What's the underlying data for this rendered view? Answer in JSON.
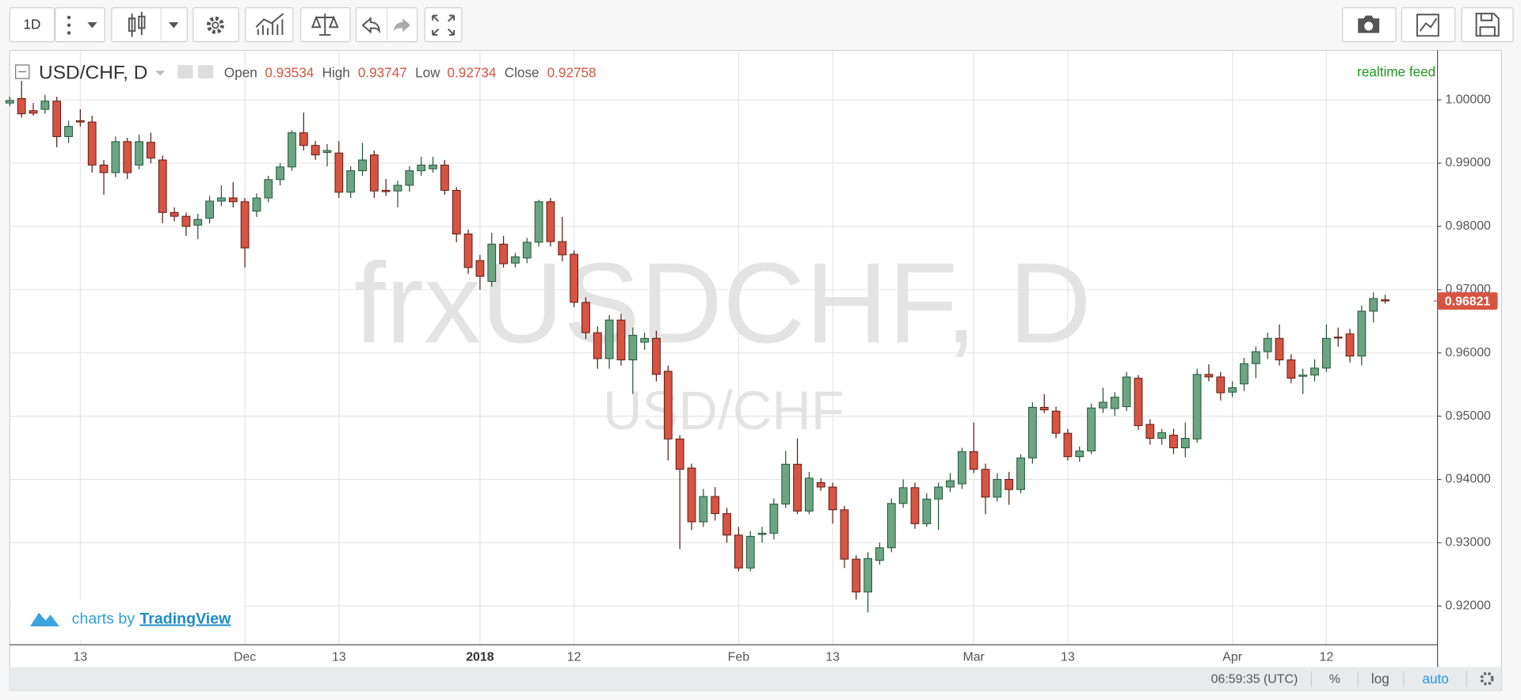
{
  "toolbar": {
    "interval": "1D"
  },
  "chart_data": {
    "type": "candlestick",
    "symbol": "USD/CHF, D",
    "legend": {
      "open_label": "Open",
      "open": 0.93534,
      "high_label": "High",
      "high": 0.93747,
      "low_label": "Low",
      "low": 0.92734,
      "close_label": "Close",
      "close": 0.92758
    },
    "status": "realtime feed",
    "watermark": "frxUSDCHF, D",
    "watermark_subtitle": "USD/CHF",
    "last_price": 0.96821,
    "up_color": "#6ba583",
    "down_color": "#d75442",
    "grid": true,
    "ylim": [
      0.91387,
      1.00782
    ],
    "yticks": [
      {
        "value": 0.92,
        "label": "0.92000"
      },
      {
        "value": 0.93,
        "label": "0.93000"
      },
      {
        "value": 0.94,
        "label": "0.94000"
      },
      {
        "value": 0.95,
        "label": "0.95000"
      },
      {
        "value": 0.96,
        "label": "0.96000"
      },
      {
        "value": 0.97,
        "label": "0.97000"
      },
      {
        "value": 0.98,
        "label": "0.98000"
      },
      {
        "value": 0.99,
        "label": "0.99000"
      },
      {
        "value": 1.0,
        "label": "1.00000"
      }
    ],
    "categories": [
      null,
      null,
      null,
      null,
      null,
      null,
      "13",
      null,
      null,
      null,
      null,
      null,
      null,
      null,
      null,
      null,
      null,
      null,
      null,
      null,
      "Dec",
      null,
      null,
      null,
      null,
      null,
      null,
      null,
      "13",
      null,
      null,
      null,
      null,
      null,
      null,
      null,
      null,
      null,
      null,
      null,
      "2018",
      null,
      null,
      null,
      null,
      null,
      null,
      null,
      "12",
      null,
      null,
      null,
      null,
      null,
      null,
      null,
      null,
      null,
      null,
      null,
      null,
      null,
      "Feb",
      null,
      null,
      null,
      null,
      null,
      null,
      null,
      "13",
      null,
      null,
      null,
      null,
      null,
      null,
      null,
      null,
      null,
      null,
      null,
      "Mar",
      null,
      null,
      null,
      null,
      null,
      null,
      null,
      "13",
      null,
      null,
      null,
      null,
      null,
      null,
      null,
      null,
      null,
      null,
      null,
      null,
      null,
      "Apr",
      null,
      null,
      null,
      null,
      null,
      null,
      null,
      "12",
      null,
      null,
      null,
      null,
      null
    ],
    "values": [
      [
        0.9995,
        1.0005,
        0.999,
        0.9999
      ],
      [
        1.0002,
        1.003,
        0.9972,
        0.9978
      ],
      [
        0.9983,
        0.9995,
        0.9975,
        0.9979
      ],
      [
        0.9985,
        1.0008,
        0.9978,
        0.9998
      ],
      [
        0.9998,
        1.0005,
        0.9925,
        0.9942
      ],
      [
        0.9942,
        0.9967,
        0.9932,
        0.9958
      ],
      [
        0.9967,
        0.9985,
        0.9958,
        0.9965
      ],
      [
        0.9965,
        0.9975,
        0.9885,
        0.9897
      ],
      [
        0.9897,
        0.9905,
        0.985,
        0.9885
      ],
      [
        0.9885,
        0.9942,
        0.9878,
        0.9934
      ],
      [
        0.9934,
        0.994,
        0.9875,
        0.9885
      ],
      [
        0.9897,
        0.9945,
        0.989,
        0.9934
      ],
      [
        0.9933,
        0.9948,
        0.99,
        0.9908
      ],
      [
        0.9905,
        0.9912,
        0.9805,
        0.9822
      ],
      [
        0.9822,
        0.983,
        0.9808,
        0.9816
      ],
      [
        0.9816,
        0.9822,
        0.9785,
        0.98
      ],
      [
        0.9802,
        0.982,
        0.978,
        0.9811
      ],
      [
        0.9813,
        0.9848,
        0.9805,
        0.984
      ],
      [
        0.984,
        0.9865,
        0.9832,
        0.9845
      ],
      [
        0.9845,
        0.987,
        0.983,
        0.9839
      ],
      [
        0.9839,
        0.9845,
        0.9735,
        0.9766
      ],
      [
        0.9824,
        0.9852,
        0.9815,
        0.9845
      ],
      [
        0.9845,
        0.988,
        0.9838,
        0.9874
      ],
      [
        0.9874,
        0.99,
        0.9865,
        0.9894
      ],
      [
        0.9894,
        0.9952,
        0.9888,
        0.9948
      ],
      [
        0.9948,
        0.998,
        0.992,
        0.9928
      ],
      [
        0.9928,
        0.9935,
        0.9905,
        0.9913
      ],
      [
        0.9917,
        0.993,
        0.9895,
        0.992
      ],
      [
        0.9916,
        0.9935,
        0.9845,
        0.9854
      ],
      [
        0.9854,
        0.9895,
        0.9845,
        0.9888
      ],
      [
        0.9888,
        0.9932,
        0.988,
        0.9905
      ],
      [
        0.9913,
        0.992,
        0.9845,
        0.9856
      ],
      [
        0.9857,
        0.9875,
        0.9848,
        0.9855
      ],
      [
        0.9856,
        0.9872,
        0.983,
        0.9865
      ],
      [
        0.9865,
        0.9895,
        0.9855,
        0.9888
      ],
      [
        0.9888,
        0.991,
        0.988,
        0.9897
      ],
      [
        0.9891,
        0.991,
        0.9885,
        0.9897
      ],
      [
        0.9897,
        0.9905,
        0.985,
        0.9857
      ],
      [
        0.9857,
        0.9862,
        0.9775,
        0.9788
      ],
      [
        0.9788,
        0.9795,
        0.9725,
        0.9735
      ],
      [
        0.9746,
        0.9755,
        0.97,
        0.9721
      ],
      [
        0.9713,
        0.979,
        0.9705,
        0.9772
      ],
      [
        0.9772,
        0.9785,
        0.9735,
        0.9741
      ],
      [
        0.9742,
        0.9758,
        0.9735,
        0.9752
      ],
      [
        0.975,
        0.9782,
        0.9742,
        0.9775
      ],
      [
        0.9775,
        0.9842,
        0.9768,
        0.9839
      ],
      [
        0.9839,
        0.9845,
        0.9768,
        0.9776
      ],
      [
        0.9776,
        0.9815,
        0.9745,
        0.9755
      ],
      [
        0.9756,
        0.9762,
        0.9672,
        0.968
      ],
      [
        0.968,
        0.9688,
        0.9622,
        0.9632
      ],
      [
        0.9632,
        0.9642,
        0.9575,
        0.9591
      ],
      [
        0.9591,
        0.966,
        0.9575,
        0.9652
      ],
      [
        0.9652,
        0.9662,
        0.958,
        0.9589
      ],
      [
        0.9589,
        0.964,
        0.9535,
        0.9628
      ],
      [
        0.9617,
        0.9632,
        0.9605,
        0.9623
      ],
      [
        0.9623,
        0.9635,
        0.9555,
        0.9566
      ],
      [
        0.9571,
        0.958,
        0.943,
        0.9464
      ],
      [
        0.9464,
        0.947,
        0.929,
        0.9416
      ],
      [
        0.9418,
        0.9425,
        0.932,
        0.9333
      ],
      [
        0.9333,
        0.9385,
        0.9325,
        0.9373
      ],
      [
        0.9373,
        0.9388,
        0.9335,
        0.9346
      ],
      [
        0.9346,
        0.9355,
        0.93,
        0.9312
      ],
      [
        0.9312,
        0.9325,
        0.9255,
        0.926
      ],
      [
        0.926,
        0.9318,
        0.9255,
        0.931
      ],
      [
        0.9313,
        0.9325,
        0.93,
        0.9315
      ],
      [
        0.9315,
        0.937,
        0.9305,
        0.9361
      ],
      [
        0.9361,
        0.9445,
        0.9355,
        0.9424
      ],
      [
        0.9424,
        0.9465,
        0.9345,
        0.935
      ],
      [
        0.935,
        0.9412,
        0.9345,
        0.9402
      ],
      [
        0.9395,
        0.9402,
        0.9382,
        0.9388
      ],
      [
        0.9388,
        0.9395,
        0.933,
        0.9352
      ],
      [
        0.9352,
        0.9358,
        0.926,
        0.9274
      ],
      [
        0.9274,
        0.928,
        0.921,
        0.9222
      ],
      [
        0.9222,
        0.9285,
        0.919,
        0.9275
      ],
      [
        0.9272,
        0.93,
        0.9265,
        0.9292
      ],
      [
        0.9292,
        0.937,
        0.9285,
        0.9362
      ],
      [
        0.9362,
        0.94,
        0.9355,
        0.9387
      ],
      [
        0.9387,
        0.9395,
        0.9322,
        0.933
      ],
      [
        0.933,
        0.9378,
        0.9325,
        0.9369
      ],
      [
        0.9369,
        0.9395,
        0.932,
        0.9388
      ],
      [
        0.9388,
        0.941,
        0.938,
        0.9398
      ],
      [
        0.9393,
        0.945,
        0.9385,
        0.9444
      ],
      [
        0.9444,
        0.949,
        0.941,
        0.9416
      ],
      [
        0.9416,
        0.9425,
        0.9345,
        0.9372
      ],
      [
        0.9372,
        0.941,
        0.9365,
        0.94
      ],
      [
        0.94,
        0.9412,
        0.936,
        0.9384
      ],
      [
        0.9384,
        0.944,
        0.9378,
        0.9434
      ],
      [
        0.9434,
        0.9522,
        0.9425,
        0.9514
      ],
      [
        0.9514,
        0.9535,
        0.9505,
        0.951
      ],
      [
        0.9508,
        0.9515,
        0.9465,
        0.9473
      ],
      [
        0.9473,
        0.948,
        0.943,
        0.9436
      ],
      [
        0.9436,
        0.9452,
        0.9428,
        0.9445
      ],
      [
        0.9445,
        0.952,
        0.944,
        0.9513
      ],
      [
        0.9513,
        0.9545,
        0.9505,
        0.9522
      ],
      [
        0.9512,
        0.9538,
        0.95,
        0.953
      ],
      [
        0.9515,
        0.957,
        0.9508,
        0.9562
      ],
      [
        0.956,
        0.9565,
        0.9478,
        0.9485
      ],
      [
        0.9487,
        0.9495,
        0.9455,
        0.9465
      ],
      [
        0.9465,
        0.948,
        0.9455,
        0.9474
      ],
      [
        0.947,
        0.948,
        0.944,
        0.945
      ],
      [
        0.945,
        0.949,
        0.9435,
        0.9465
      ],
      [
        0.9464,
        0.9575,
        0.9458,
        0.9566
      ],
      [
        0.9566,
        0.9582,
        0.9555,
        0.9562
      ],
      [
        0.9562,
        0.957,
        0.9525,
        0.9537
      ],
      [
        0.9538,
        0.9555,
        0.953,
        0.9545
      ],
      [
        0.9551,
        0.9592,
        0.954,
        0.9583
      ],
      [
        0.9583,
        0.961,
        0.956,
        0.9602
      ],
      [
        0.9602,
        0.9632,
        0.959,
        0.9623
      ],
      [
        0.9623,
        0.9645,
        0.958,
        0.9589
      ],
      [
        0.9589,
        0.9598,
        0.9552,
        0.956
      ],
      [
        0.9563,
        0.9575,
        0.9535,
        0.9565
      ],
      [
        0.9565,
        0.959,
        0.9555,
        0.9576
      ],
      [
        0.9576,
        0.9645,
        0.957,
        0.9623
      ],
      [
        0.9625,
        0.964,
        0.961,
        0.9624
      ],
      [
        0.963,
        0.9638,
        0.9585,
        0.9595
      ],
      [
        0.9595,
        0.9675,
        0.958,
        0.9666
      ],
      [
        0.9666,
        0.9696,
        0.9648,
        0.9686
      ],
      [
        0.9684,
        0.9692,
        0.9678,
        0.96821
      ]
    ]
  },
  "branding": {
    "prefix": "charts by",
    "name": "TradingView"
  },
  "status_bar": {
    "time": "06:59:35 (UTC)",
    "percent": "%",
    "log": "log",
    "auto": "auto"
  }
}
